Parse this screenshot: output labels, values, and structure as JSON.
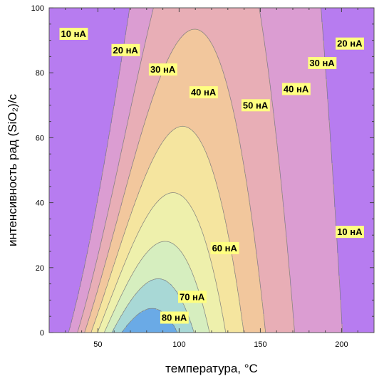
{
  "chart_data": {
    "type": "contour",
    "xlabel": "температура, °C",
    "ylabel": "интенсивность  рад (SiO₂)/с",
    "xlim": [
      20,
      220
    ],
    "ylim": [
      0,
      100
    ],
    "x_ticks": [
      50,
      100,
      150,
      200
    ],
    "y_ticks": [
      0,
      20,
      40,
      60,
      80,
      100
    ],
    "x_tick_labels": [
      "50",
      "100",
      "150",
      "200"
    ],
    "y_tick_labels": [
      "0",
      "20",
      "40",
      "60",
      "80",
      "100"
    ],
    "grid": false,
    "z_unit": "нА",
    "peak": {
      "x": 80,
      "y": 0,
      "z": 90
    },
    "levels": [
      10,
      20,
      30,
      40,
      50,
      60,
      70,
      80
    ],
    "level_colors": [
      "#b77cf0",
      "#db9dd2",
      "#e8aeb6",
      "#f2c79d",
      "#f5e59f",
      "#eef0ac",
      "#d6eebf",
      "#a8d8d6",
      "#6aaae6"
    ],
    "contour_labels": [
      {
        "text": "10 нА",
        "x": 35,
        "y": 92
      },
      {
        "text": "20 нА",
        "x": 67,
        "y": 87
      },
      {
        "text": "30 нА",
        "x": 90,
        "y": 81
      },
      {
        "text": "40 нА",
        "x": 115,
        "y": 74
      },
      {
        "text": "50 нА",
        "x": 147,
        "y": 70
      },
      {
        "text": "40 нА",
        "x": 172,
        "y": 75
      },
      {
        "text": "30 нА",
        "x": 188,
        "y": 83
      },
      {
        "text": "20 нА",
        "x": 205,
        "y": 89
      },
      {
        "text": "10 нА",
        "x": 205,
        "y": 31
      },
      {
        "text": "60 нА",
        "x": 128,
        "y": 26
      },
      {
        "text": "70 нА",
        "x": 108,
        "y": 11
      },
      {
        "text": "80 нА",
        "x": 97,
        "y": 4.6
      }
    ]
  }
}
